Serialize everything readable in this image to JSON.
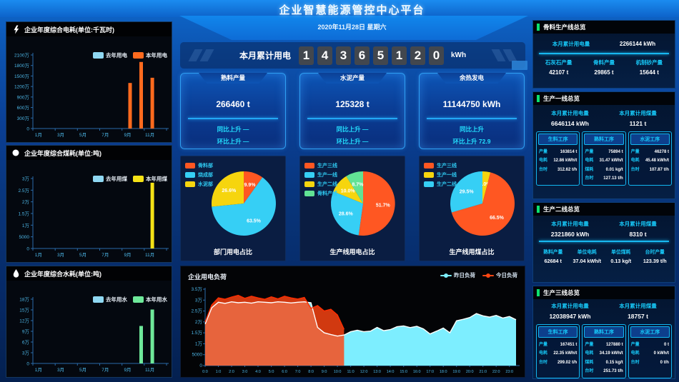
{
  "colors": {
    "accent_cyan": "#17c8f8",
    "accent_green": "#0ce06e",
    "bar_lastyear": "#8fd8f2",
    "bar_elec": "#ff6a1e",
    "bar_coal": "#f5e216",
    "bar_water": "#6ee89a",
    "pie_red": "#ff5722",
    "pie_cyan": "#36cff5",
    "pie_yellow": "#f6d50e",
    "pie_green": "#61e294",
    "load_yesterday": "#7deeff",
    "load_today": "#ff4612"
  },
  "header": {
    "title": "企业智慧能源管控中心平台",
    "date": "2020年11月28日 星期六"
  },
  "counter": {
    "label": "本月累计用电",
    "digits": [
      "1",
      "4",
      "3",
      "6",
      "5",
      "1",
      "2",
      "0"
    ],
    "unit": "kWh"
  },
  "stat_cards": [
    {
      "title": "熟料产量",
      "value": "266460 t",
      "yoy": "同比上升 —",
      "mom": "环比上升 —"
    },
    {
      "title": "水泥产量",
      "value": "125328 t",
      "yoy": "同比上升 —",
      "mom": "环比上升 —"
    },
    {
      "title": "余热发电",
      "value": "11144750 kWh",
      "yoy": "同比上升",
      "mom": "环比上升 72.9"
    }
  ],
  "right_panels": {
    "aggregate": {
      "title": "骨料生产线总览",
      "kv": [
        {
          "label": "本月累计用电量",
          "value": "2266144 kWh"
        }
      ],
      "stats": [
        {
          "label": "石灰石产量",
          "value": "42107 t"
        },
        {
          "label": "骨料产量",
          "value": "29865 t"
        },
        {
          "label": "机制砂产量",
          "value": "15644 t"
        }
      ]
    },
    "line1": {
      "title": "生产一线总览",
      "kv": [
        {
          "label": "本月累计用电量",
          "value": "6646114 kWh"
        },
        {
          "label": "本月累计用煤量",
          "value": "1121 t"
        }
      ],
      "procs": [
        {
          "title": "生料工序",
          "rows": [
            {
              "label": "产量",
              "value": "163814 t"
            },
            {
              "label": "电耗",
              "value": "12.86 kWh/t"
            },
            {
              "label": "台时",
              "value": "312.62 t/h"
            }
          ]
        },
        {
          "title": "熟料工序",
          "rows": [
            {
              "label": "产量",
              "value": "75894 t"
            },
            {
              "label": "电耗",
              "value": "31.47 kWh/t"
            },
            {
              "label": "煤耗",
              "value": "0.01 kg/t"
            },
            {
              "label": "台时",
              "value": "127.13 t/h"
            }
          ]
        },
        {
          "title": "水泥工序",
          "rows": [
            {
              "label": "产量",
              "value": "46278 t"
            },
            {
              "label": "电耗",
              "value": "45.48 kWh/t"
            },
            {
              "label": "台时",
              "value": "107.87 t/h"
            }
          ]
        }
      ]
    },
    "line2": {
      "title": "生产二线总览",
      "kv": [
        {
          "label": "本月累计用电量",
          "value": "2321860 kWh"
        },
        {
          "label": "本月累计用煤量",
          "value": "8310 t"
        }
      ],
      "stats": [
        {
          "label": "熟料产量",
          "value": "62684 t"
        },
        {
          "label": "单位电耗",
          "value": "37.04 kWh/t"
        },
        {
          "label": "单位煤耗",
          "value": "0.13 kg/t"
        },
        {
          "label": "台时产量",
          "value": "123.39 t/h"
        }
      ]
    },
    "line3": {
      "title": "生产三线总览",
      "kv": [
        {
          "label": "本月累计用电量",
          "value": "12038947 kWh"
        },
        {
          "label": "本月累计用煤量",
          "value": "18757 t"
        }
      ],
      "procs": [
        {
          "title": "生料工序",
          "rows": [
            {
              "label": "产量",
              "value": "167451 t"
            },
            {
              "label": "电耗",
              "value": "22.35 kWh/t"
            },
            {
              "label": "台时",
              "value": "299.02 t/h"
            }
          ]
        },
        {
          "title": "熟料工序",
          "rows": [
            {
              "label": "产量",
              "value": "127880 t"
            },
            {
              "label": "电耗",
              "value": "34.19 kWh/t"
            },
            {
              "label": "煤耗",
              "value": "0.15 kg/t"
            },
            {
              "label": "台时",
              "value": "251.73 t/h"
            }
          ]
        },
        {
          "title": "水泥工序",
          "rows": [
            {
              "label": "产量",
              "value": "0 t"
            },
            {
              "label": "电耗",
              "value": "0 kWh/t"
            },
            {
              "label": "台时",
              "value": "0 t/h"
            }
          ]
        }
      ]
    }
  },
  "chart_data": [
    {
      "id": "elec-bar",
      "type": "bar",
      "title": "企业年度综合电耗(单位:千瓦时)",
      "categories": [
        "1月",
        "2月",
        "3月",
        "4月",
        "5月",
        "6月",
        "7月",
        "8月",
        "9月",
        "10月",
        "11月",
        "12月"
      ],
      "ymax": 2100,
      "yticks": [
        "0",
        "300万",
        "600万",
        "900万",
        "1200万",
        "1500万",
        "1800万",
        "2100万"
      ],
      "xticks": [
        "1月",
        "3月",
        "5月",
        "7月",
        "9月",
        "11月"
      ],
      "xtick_pos": [
        0,
        2,
        4,
        6,
        8,
        10
      ],
      "series": [
        {
          "name": "去年用电",
          "color": "#8fd8f2",
          "values": [
            0,
            0,
            0,
            0,
            0,
            0,
            0,
            0,
            0,
            0,
            0,
            0
          ]
        },
        {
          "name": "本年用电",
          "color": "#ff6a1e",
          "values": [
            0,
            0,
            0,
            0,
            0,
            0,
            0,
            0,
            1300,
            1900,
            1450,
            0
          ]
        }
      ]
    },
    {
      "id": "coal-bar",
      "type": "bar",
      "title": "企业年度综合煤耗(单位:吨)",
      "categories": [
        "1月",
        "2月",
        "3月",
        "4月",
        "5月",
        "6月",
        "7月",
        "8月",
        "9月",
        "10月",
        "11月",
        "12月"
      ],
      "ymax": 3,
      "yticks": [
        "0",
        "5000",
        "1万",
        "1.5万",
        "2万",
        "2.5万",
        "3万"
      ],
      "xticks": [
        "1月",
        "3月",
        "5月",
        "7月",
        "9月",
        "11月"
      ],
      "xtick_pos": [
        0,
        2,
        4,
        6,
        8,
        10
      ],
      "series": [
        {
          "name": "去年用煤",
          "color": "#8fd8f2",
          "values": [
            0,
            0,
            0,
            0,
            0,
            0,
            0,
            0,
            0,
            0,
            0,
            0
          ]
        },
        {
          "name": "本年用煤",
          "color": "#f5e216",
          "values": [
            0,
            0,
            0,
            0,
            0,
            0,
            0,
            0,
            0,
            0,
            2.82,
            0
          ]
        }
      ]
    },
    {
      "id": "water-bar",
      "type": "bar",
      "title": "企业年度综合水耗(单位:吨)",
      "categories": [
        "1月",
        "2月",
        "3月",
        "4月",
        "5月",
        "6月",
        "7月",
        "8月",
        "9月",
        "10月",
        "11月",
        "12月"
      ],
      "ymax": 18,
      "yticks": [
        "0",
        "3万",
        "6万",
        "9万",
        "12万",
        "15万",
        "18万"
      ],
      "xticks": [
        "1月",
        "3月",
        "5月",
        "7月",
        "9月",
        "11月"
      ],
      "xtick_pos": [
        0,
        2,
        4,
        6,
        8,
        10
      ],
      "series": [
        {
          "name": "去年用水",
          "color": "#8fd8f2",
          "values": [
            0,
            0,
            0,
            0,
            0,
            0,
            0,
            0,
            0,
            0,
            0,
            0
          ]
        },
        {
          "name": "本年用水",
          "color": "#6ee89a",
          "values": [
            0,
            0,
            0,
            0,
            0,
            0,
            0,
            0,
            0,
            10.5,
            15.1,
            0
          ]
        }
      ]
    },
    {
      "id": "dept-pie",
      "type": "pie",
      "title": "部门用电占比",
      "cx": 88,
      "cy": 58,
      "r": 45,
      "slices": [
        {
          "name": "骨料部",
          "value": 9.9,
          "pct": "9.9%",
          "color": "#ff5722"
        },
        {
          "name": "烧成部",
          "value": 63.5,
          "pct": "63.5%",
          "color": "#36cff5"
        },
        {
          "name": "水泥部",
          "value": 26.6,
          "pct": "26.6%",
          "color": "#f6d50e"
        }
      ]
    },
    {
      "id": "line-elec-pie",
      "type": "pie",
      "title": "生产线用电占比",
      "cx": 88,
      "cy": 58,
      "r": 45,
      "slices": [
        {
          "name": "生产三线",
          "value": 51.7,
          "pct": "51.7%",
          "color": "#ff5722"
        },
        {
          "name": "生产一线",
          "value": 28.6,
          "pct": "28.6%",
          "color": "#36cff5"
        },
        {
          "name": "生产二线",
          "value": 10.0,
          "pct": "10.0%",
          "color": "#f6d50e"
        },
        {
          "name": "骨料产线",
          "value": 8.7,
          "pct": "8.7%",
          "color": "#61e294"
        }
      ]
    },
    {
      "id": "line-coal-pie",
      "type": "pie",
      "title": "生产线用煤占比",
      "cx": 88,
      "cy": 58,
      "r": 45,
      "slices": [
        {
          "name": "生产一线",
          "value": 4.0,
          "pct": "4.0%",
          "color": "#f6d50e"
        },
        {
          "name": "生产三线",
          "value": 66.5,
          "pct": "66.5%",
          "color": "#ff5722"
        },
        {
          "name": "生产二线",
          "value": 29.5,
          "pct": "29.5%",
          "color": "#36cff5"
        }
      ]
    },
    {
      "id": "load-area",
      "type": "area",
      "title": "企业用电负荷",
      "ymax": 3.5,
      "slots": 48,
      "yticks": [
        "0",
        "5000",
        "1万",
        "1.5万",
        "2万",
        "2.5万",
        "3万",
        "3.5万"
      ],
      "xlabels": [
        "0:0",
        "1:0",
        "2:0",
        "3:0",
        "4:0",
        "5:0",
        "6:0",
        "7:0",
        "8:0",
        "9:0",
        "10:0",
        "11:0",
        "12:0",
        "13:0",
        "14:0",
        "15:0",
        "16:0",
        "17:0",
        "18:0",
        "19:0",
        "20:0",
        "21:0",
        "22:0",
        "23:0"
      ],
      "series": [
        {
          "name": "昨日负荷",
          "fill": "#7deeff",
          "line": "#ffffff",
          "opacity": 1,
          "values": [
            1.9,
            2.65,
            2.9,
            2.85,
            2.92,
            2.88,
            2.9,
            2.86,
            2.92,
            2.9,
            2.88,
            2.92,
            2.9,
            2.87,
            2.9,
            2.92,
            2.88,
            1.75,
            1.5,
            1.42,
            1.35,
            1.4,
            1.55,
            1.62,
            1.55,
            1.58,
            1.75,
            1.6,
            1.65,
            1.78,
            1.82,
            1.74,
            1.8,
            1.68,
            1.45,
            1.58,
            1.72,
            1.5,
            2.05,
            2.12,
            2.2,
            2.38,
            2.28,
            2.22,
            2.3,
            2.18,
            2.25,
            2.1
          ]
        },
        {
          "name": "今日负荷",
          "fill": "#ff4612",
          "line": "#ff2d00",
          "opacity": 0.82,
          "values": [
            2.0,
            2.78,
            3.1,
            3.04,
            3.14,
            3.22,
            3.08,
            3.18,
            3.1,
            3.04,
            3.15,
            3.06,
            3.18,
            3.1,
            3.05,
            3.12,
            2.62,
            2.75,
            2.5,
            2.58,
            2.32,
            1.66
          ]
        }
      ]
    }
  ]
}
